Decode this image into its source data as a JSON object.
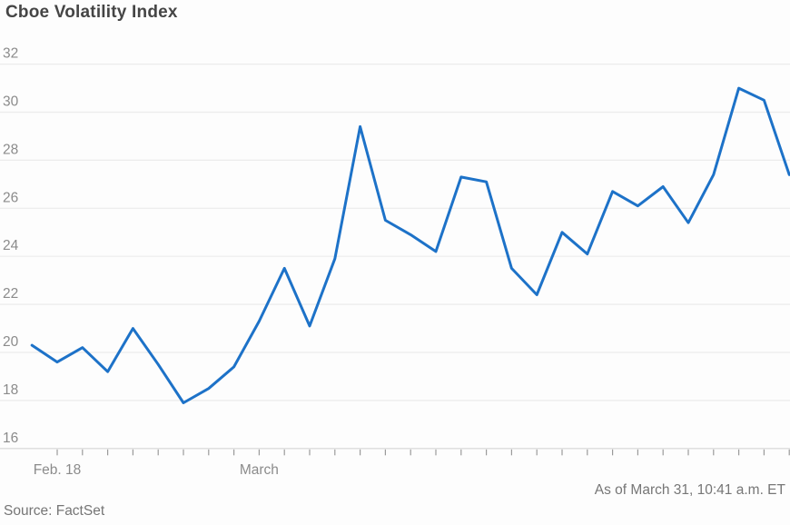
{
  "title": "Cboe Volatility Index",
  "footer": {
    "as_of": "As of March 31, 10:41 a.m. ET",
    "source": "Source: FactSet"
  },
  "colors": {
    "line": "#1d72c8",
    "title_text": "#454545",
    "axis_text": "#8b8b8b",
    "footer_text": "#767676",
    "gridline": "#ececec",
    "axis_line": "#d5d5d5",
    "tick": "#9a9a9a",
    "background": "#fdfdfd"
  },
  "chart_data": {
    "type": "line",
    "title": "Cboe Volatility Index",
    "series": [
      {
        "name": "Cboe Volatility Index",
        "values": [
          20.3,
          19.6,
          20.2,
          19.2,
          21.0,
          19.5,
          17.9,
          18.5,
          19.4,
          21.3,
          23.5,
          21.1,
          23.9,
          29.4,
          25.5,
          24.9,
          24.2,
          27.3,
          27.1,
          23.5,
          22.4,
          25.0,
          24.1,
          26.7,
          26.1,
          26.9,
          25.4,
          27.4,
          31.0,
          30.5,
          27.4
        ]
      }
    ],
    "x_tick_labels": [
      {
        "label": "Feb. 18",
        "at_index": 1
      },
      {
        "label": "March",
        "at_index": 9
      }
    ],
    "y_ticks": [
      16,
      18,
      20,
      22,
      24,
      26,
      28,
      30,
      32
    ],
    "ylim": [
      16,
      32
    ],
    "grid": "horizontal",
    "legend": "none",
    "as_of": "As of March 31, 10:41 a.m. ET",
    "source": "Source: FactSet"
  }
}
